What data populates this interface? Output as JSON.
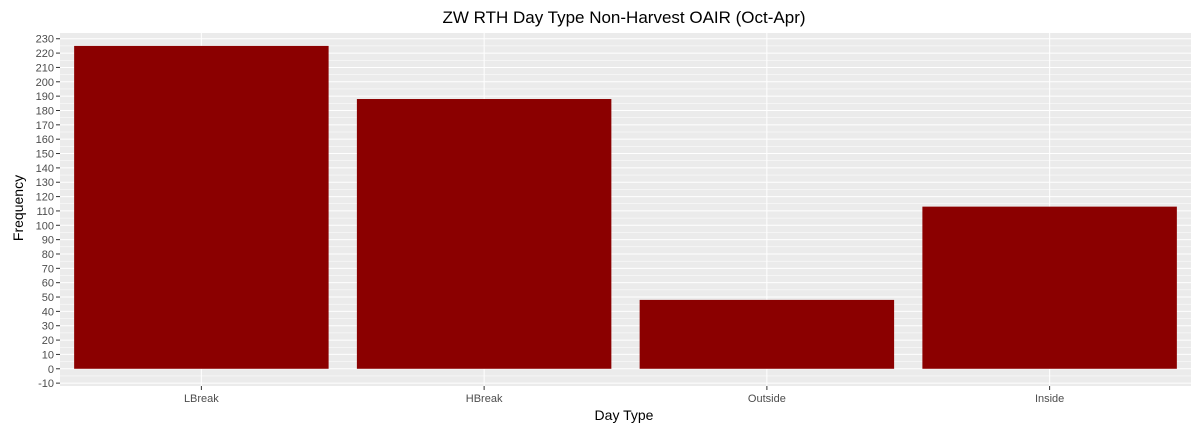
{
  "chart_data": {
    "type": "bar",
    "title": "ZW RTH Day Type Non-Harvest OAIR (Oct-Apr)",
    "xlabel": "Day Type",
    "ylabel": "Frequency",
    "categories": [
      "LBreak",
      "HBreak",
      "Outside",
      "Inside"
    ],
    "values": [
      225,
      188,
      48,
      113
    ],
    "ylim": [
      -10,
      230
    ],
    "ytick_step": 10,
    "bar_color": "#8B0000",
    "panel_background": "#EBEBEB",
    "grid_color": "#FFFFFF",
    "grid": true,
    "legend": "none"
  }
}
